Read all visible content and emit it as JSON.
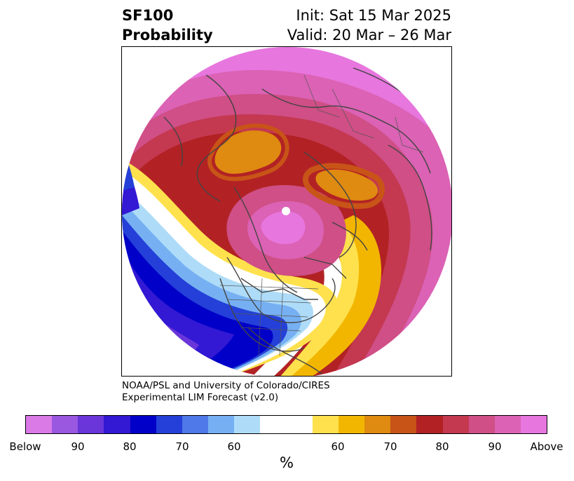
{
  "header": {
    "title_line1": "SF100",
    "title_line2": "Probability",
    "init": "Init: Sat 15 Mar 2025",
    "valid": "Valid: 20 Mar – 26 Mar"
  },
  "credit": {
    "line1": "NOAA/PSL and University of Colorado/CIRES",
    "line2": "Experimental LIM Forecast (v2.0)"
  },
  "colorbar": {
    "segments": [
      "#d97ae6",
      "#9a57e0",
      "#6a35d9",
      "#3318d4",
      "#0000c8",
      "#2440d8",
      "#4f78e8",
      "#76b0f2",
      "#aedcf8",
      "#ffffff",
      "#ffffff",
      "#ffe14d",
      "#f2b600",
      "#df8a10",
      "#c85418",
      "#b22224",
      "#c43850",
      "#cf4f86",
      "#db62b4",
      "#e776de"
    ],
    "ticks": [
      "Below",
      "90",
      "80",
      "70",
      "60",
      "60",
      "70",
      "80",
      "90",
      "Above"
    ],
    "unit": "%"
  },
  "palette": {
    "land_outline": "#444444",
    "above_strong": "#e776de",
    "below_strong": "#0000c8"
  }
}
